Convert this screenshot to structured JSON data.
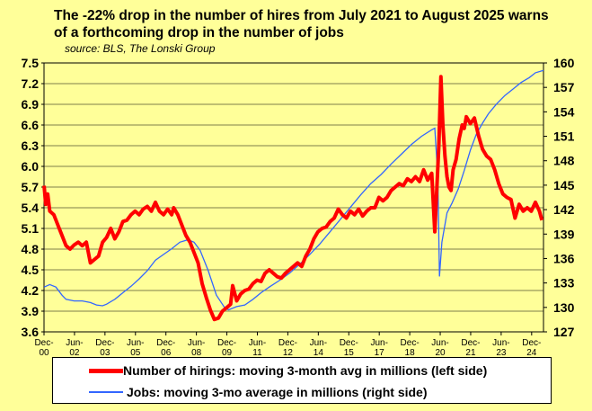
{
  "title": "The -22% drop in the number of hires from July 2021 to August 2025 warns of a forthcoming drop in the number of jobs",
  "source": "source: BLS, The Lonski Group",
  "colors": {
    "background": "#FFFF99",
    "hires": "#FF0000",
    "jobs": "#3366FF"
  },
  "legend": {
    "hires": "Number of hirings: moving 3-month avg in millions (left side)",
    "jobs": "Jobs: moving 3-mo average in millions (right side)"
  },
  "chart_data": {
    "type": "line",
    "x_range": [
      2000.917,
      2025.5
    ],
    "left_axis": {
      "ylim": [
        3.6,
        7.5
      ],
      "ticks": [
        "3.6",
        "3.9",
        "4.2",
        "4.5",
        "4.8",
        "5.1",
        "5.4",
        "5.7",
        "6.0",
        "6.3",
        "6.6",
        "6.9",
        "7.2",
        "7.5"
      ]
    },
    "right_axis": {
      "ylim": [
        127,
        160
      ],
      "ticks": [
        "127",
        "130",
        "133",
        "136",
        "139",
        "142",
        "145",
        "148",
        "151",
        "154",
        "157",
        "160"
      ]
    },
    "x_ticks": [
      {
        "top": "Dec-",
        "bottom": "00",
        "x": 2000.917
      },
      {
        "top": "Jun-",
        "bottom": "02",
        "x": 2002.417
      },
      {
        "top": "Dec-",
        "bottom": "03",
        "x": 2003.917
      },
      {
        "top": "Jun-",
        "bottom": "05",
        "x": 2005.417
      },
      {
        "top": "Dec-",
        "bottom": "06",
        "x": 2006.917
      },
      {
        "top": "Jun-",
        "bottom": "08",
        "x": 2008.417
      },
      {
        "top": "Dec-",
        "bottom": "09",
        "x": 2009.917
      },
      {
        "top": "Jun-",
        "bottom": "11",
        "x": 2011.417
      },
      {
        "top": "Dec-",
        "bottom": "12",
        "x": 2012.917
      },
      {
        "top": "Jun-",
        "bottom": "14",
        "x": 2014.417
      },
      {
        "top": "Dec-",
        "bottom": "15",
        "x": 2015.917
      },
      {
        "top": "Jun-",
        "bottom": "17",
        "x": 2017.417
      },
      {
        "top": "Dec-",
        "bottom": "18",
        "x": 2018.917
      },
      {
        "top": "Jun-",
        "bottom": "20",
        "x": 2020.417
      },
      {
        "top": "Dec-",
        "bottom": "21",
        "x": 2021.917
      },
      {
        "top": "Jun-",
        "bottom": "23",
        "x": 2023.417
      },
      {
        "top": "Dec-",
        "bottom": "24",
        "x": 2024.917
      }
    ],
    "series": [
      {
        "name": "Number of hirings: moving 3-month avg in millions (left side)",
        "axis": "left",
        "points": [
          [
            2000.92,
            5.72
          ],
          [
            2001.0,
            5.45
          ],
          [
            2001.1,
            5.6
          ],
          [
            2001.2,
            5.35
          ],
          [
            2001.4,
            5.3
          ],
          [
            2001.6,
            5.15
          ],
          [
            2001.8,
            5.0
          ],
          [
            2002.0,
            4.85
          ],
          [
            2002.2,
            4.8
          ],
          [
            2002.4,
            4.86
          ],
          [
            2002.6,
            4.9
          ],
          [
            2002.8,
            4.85
          ],
          [
            2003.0,
            4.9
          ],
          [
            2003.2,
            4.6
          ],
          [
            2003.4,
            4.65
          ],
          [
            2003.6,
            4.7
          ],
          [
            2003.8,
            4.9
          ],
          [
            2004.0,
            4.97
          ],
          [
            2004.2,
            5.1
          ],
          [
            2004.4,
            4.95
          ],
          [
            2004.6,
            5.05
          ],
          [
            2004.8,
            5.2
          ],
          [
            2005.0,
            5.22
          ],
          [
            2005.2,
            5.3
          ],
          [
            2005.4,
            5.35
          ],
          [
            2005.6,
            5.3
          ],
          [
            2005.8,
            5.38
          ],
          [
            2006.0,
            5.42
          ],
          [
            2006.2,
            5.35
          ],
          [
            2006.4,
            5.48
          ],
          [
            2006.6,
            5.35
          ],
          [
            2006.8,
            5.3
          ],
          [
            2007.0,
            5.38
          ],
          [
            2007.2,
            5.3
          ],
          [
            2007.3,
            5.4
          ],
          [
            2007.5,
            5.3
          ],
          [
            2007.7,
            5.15
          ],
          [
            2007.9,
            5.0
          ],
          [
            2008.1,
            4.9
          ],
          [
            2008.3,
            4.75
          ],
          [
            2008.5,
            4.6
          ],
          [
            2008.7,
            4.3
          ],
          [
            2008.9,
            4.1
          ],
          [
            2009.1,
            3.92
          ],
          [
            2009.3,
            3.78
          ],
          [
            2009.5,
            3.8
          ],
          [
            2009.7,
            3.9
          ],
          [
            2009.9,
            3.95
          ],
          [
            2010.1,
            4.0
          ],
          [
            2010.2,
            4.27
          ],
          [
            2010.4,
            4.05
          ],
          [
            2010.6,
            4.15
          ],
          [
            2010.8,
            4.2
          ],
          [
            2011.0,
            4.22
          ],
          [
            2011.2,
            4.3
          ],
          [
            2011.4,
            4.35
          ],
          [
            2011.6,
            4.33
          ],
          [
            2011.8,
            4.45
          ],
          [
            2012.0,
            4.5
          ],
          [
            2012.2,
            4.45
          ],
          [
            2012.4,
            4.4
          ],
          [
            2012.6,
            4.38
          ],
          [
            2012.8,
            4.45
          ],
          [
            2013.0,
            4.5
          ],
          [
            2013.2,
            4.55
          ],
          [
            2013.4,
            4.6
          ],
          [
            2013.6,
            4.55
          ],
          [
            2013.8,
            4.7
          ],
          [
            2014.0,
            4.8
          ],
          [
            2014.2,
            4.95
          ],
          [
            2014.4,
            5.05
          ],
          [
            2014.6,
            5.1
          ],
          [
            2014.8,
            5.12
          ],
          [
            2015.0,
            5.2
          ],
          [
            2015.2,
            5.25
          ],
          [
            2015.4,
            5.38
          ],
          [
            2015.6,
            5.3
          ],
          [
            2015.8,
            5.25
          ],
          [
            2016.0,
            5.35
          ],
          [
            2016.2,
            5.3
          ],
          [
            2016.4,
            5.38
          ],
          [
            2016.6,
            5.28
          ],
          [
            2016.8,
            5.35
          ],
          [
            2017.0,
            5.4
          ],
          [
            2017.2,
            5.4
          ],
          [
            2017.4,
            5.55
          ],
          [
            2017.6,
            5.5
          ],
          [
            2017.8,
            5.55
          ],
          [
            2018.0,
            5.65
          ],
          [
            2018.2,
            5.7
          ],
          [
            2018.4,
            5.75
          ],
          [
            2018.6,
            5.72
          ],
          [
            2018.8,
            5.82
          ],
          [
            2019.0,
            5.78
          ],
          [
            2019.2,
            5.85
          ],
          [
            2019.4,
            5.78
          ],
          [
            2019.6,
            5.95
          ],
          [
            2019.8,
            5.8
          ],
          [
            2020.0,
            5.9
          ],
          [
            2020.15,
            5.05
          ],
          [
            2020.35,
            6.3
          ],
          [
            2020.45,
            7.3
          ],
          [
            2020.55,
            6.6
          ],
          [
            2020.65,
            6.15
          ],
          [
            2020.75,
            5.85
          ],
          [
            2020.85,
            5.7
          ],
          [
            2020.95,
            5.65
          ],
          [
            2021.05,
            5.95
          ],
          [
            2021.2,
            6.1
          ],
          [
            2021.35,
            6.4
          ],
          [
            2021.5,
            6.6
          ],
          [
            2021.6,
            6.55
          ],
          [
            2021.7,
            6.72
          ],
          [
            2021.9,
            6.62
          ],
          [
            2022.1,
            6.7
          ],
          [
            2022.3,
            6.45
          ],
          [
            2022.5,
            6.25
          ],
          [
            2022.7,
            6.15
          ],
          [
            2022.9,
            6.1
          ],
          [
            2023.1,
            5.95
          ],
          [
            2023.3,
            5.75
          ],
          [
            2023.5,
            5.6
          ],
          [
            2023.7,
            5.55
          ],
          [
            2023.9,
            5.52
          ],
          [
            2024.1,
            5.25
          ],
          [
            2024.3,
            5.45
          ],
          [
            2024.5,
            5.35
          ],
          [
            2024.7,
            5.4
          ],
          [
            2024.9,
            5.35
          ],
          [
            2025.1,
            5.48
          ],
          [
            2025.3,
            5.35
          ],
          [
            2025.42,
            5.22
          ]
        ]
      },
      {
        "name": "Jobs: moving 3-mo average in millions (right side)",
        "axis": "right",
        "points": [
          [
            2000.92,
            132.5
          ],
          [
            2001.2,
            132.8
          ],
          [
            2001.5,
            132.5
          ],
          [
            2001.8,
            131.5
          ],
          [
            2002.0,
            131.0
          ],
          [
            2002.4,
            130.8
          ],
          [
            2002.8,
            130.8
          ],
          [
            2003.2,
            130.6
          ],
          [
            2003.5,
            130.3
          ],
          [
            2003.8,
            130.2
          ],
          [
            2004.0,
            130.4
          ],
          [
            2004.4,
            131.0
          ],
          [
            2004.8,
            131.8
          ],
          [
            2005.2,
            132.6
          ],
          [
            2005.6,
            133.5
          ],
          [
            2006.0,
            134.5
          ],
          [
            2006.4,
            135.8
          ],
          [
            2006.8,
            136.5
          ],
          [
            2007.2,
            137.2
          ],
          [
            2007.6,
            138.0
          ],
          [
            2008.0,
            138.3
          ],
          [
            2008.3,
            138.0
          ],
          [
            2008.6,
            137.0
          ],
          [
            2009.0,
            134.5
          ],
          [
            2009.4,
            131.5
          ],
          [
            2009.8,
            130.0
          ],
          [
            2010.0,
            129.7
          ],
          [
            2010.4,
            130.1
          ],
          [
            2010.8,
            130.3
          ],
          [
            2011.2,
            131.0
          ],
          [
            2011.6,
            131.8
          ],
          [
            2012.0,
            132.5
          ],
          [
            2012.5,
            133.3
          ],
          [
            2013.0,
            134.2
          ],
          [
            2013.5,
            135.3
          ],
          [
            2014.0,
            136.5
          ],
          [
            2014.5,
            137.8
          ],
          [
            2015.0,
            139.3
          ],
          [
            2015.5,
            140.8
          ],
          [
            2016.0,
            142.3
          ],
          [
            2016.5,
            143.8
          ],
          [
            2017.0,
            145.2
          ],
          [
            2017.5,
            146.3
          ],
          [
            2018.0,
            147.6
          ],
          [
            2018.5,
            148.8
          ],
          [
            2019.0,
            150.0
          ],
          [
            2019.5,
            151.0
          ],
          [
            2020.0,
            151.8
          ],
          [
            2020.15,
            152.0
          ],
          [
            2020.3,
            146.0
          ],
          [
            2020.38,
            133.8
          ],
          [
            2020.5,
            138.0
          ],
          [
            2020.75,
            141.6
          ],
          [
            2021.0,
            142.8
          ],
          [
            2021.3,
            144.5
          ],
          [
            2021.6,
            146.8
          ],
          [
            2021.9,
            149.3
          ],
          [
            2022.2,
            151.3
          ],
          [
            2022.5,
            152.6
          ],
          [
            2022.8,
            153.8
          ],
          [
            2023.2,
            155.0
          ],
          [
            2023.6,
            156.0
          ],
          [
            2024.0,
            156.8
          ],
          [
            2024.4,
            157.6
          ],
          [
            2024.8,
            158.2
          ],
          [
            2025.1,
            158.8
          ],
          [
            2025.5,
            159.1
          ]
        ]
      }
    ],
    "grid": true,
    "legend_position": "bottom"
  }
}
